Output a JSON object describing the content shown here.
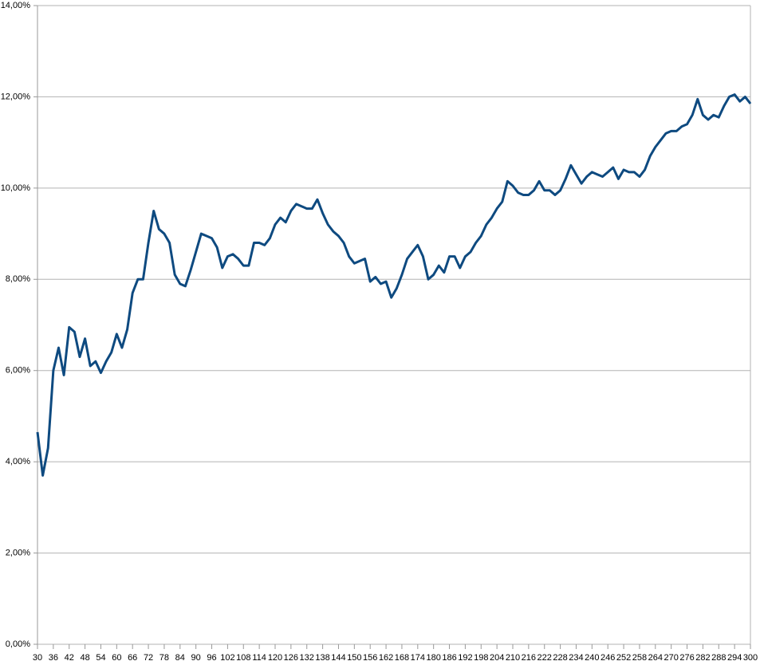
{
  "chart_data": {
    "type": "line",
    "x": [
      30,
      32,
      34,
      36,
      38,
      40,
      42,
      44,
      46,
      48,
      50,
      52,
      54,
      56,
      58,
      60,
      62,
      64,
      66,
      68,
      70,
      72,
      74,
      76,
      78,
      80,
      82,
      84,
      86,
      88,
      90,
      92,
      94,
      96,
      98,
      100,
      102,
      104,
      106,
      108,
      110,
      112,
      114,
      116,
      118,
      120,
      122,
      124,
      126,
      128,
      130,
      132,
      134,
      136,
      138,
      140,
      142,
      144,
      146,
      148,
      150,
      152,
      154,
      156,
      158,
      160,
      162,
      164,
      166,
      168,
      170,
      172,
      174,
      176,
      178,
      180,
      182,
      184,
      186,
      188,
      190,
      192,
      194,
      196,
      198,
      200,
      202,
      204,
      206,
      208,
      210,
      212,
      214,
      216,
      218,
      220,
      222,
      224,
      226,
      228,
      230,
      232,
      234,
      236,
      238,
      240,
      242,
      244,
      246,
      248,
      250,
      252,
      254,
      256,
      258,
      260,
      262,
      264,
      266,
      268,
      270,
      272,
      274,
      276,
      278,
      280,
      282,
      284,
      286,
      288,
      290,
      292,
      294,
      296,
      298,
      300
    ],
    "series": [
      {
        "color": "#0e4a80",
        "values": [
          4.65,
          3.7,
          4.3,
          6.0,
          6.5,
          5.9,
          6.95,
          6.85,
          6.3,
          6.7,
          6.1,
          6.2,
          5.95,
          6.2,
          6.4,
          6.8,
          6.5,
          6.9,
          7.7,
          8.0,
          8.0,
          8.8,
          9.5,
          9.1,
          9.0,
          8.8,
          8.1,
          7.9,
          7.85,
          8.2,
          8.6,
          9.0,
          8.95,
          8.9,
          8.7,
          8.25,
          8.5,
          8.55,
          8.45,
          8.3,
          8.3,
          8.8,
          8.8,
          8.75,
          8.9,
          9.2,
          9.35,
          9.25,
          9.5,
          9.65,
          9.6,
          9.55,
          9.55,
          9.75,
          9.45,
          9.2,
          9.05,
          8.95,
          8.8,
          8.5,
          8.35,
          8.4,
          8.45,
          7.95,
          8.05,
          7.9,
          7.95,
          7.6,
          7.8,
          8.1,
          8.45,
          8.6,
          8.75,
          8.5,
          8.0,
          8.1,
          8.3,
          8.15,
          8.5,
          8.5,
          8.25,
          8.5,
          8.6,
          8.8,
          8.95,
          9.2,
          9.35,
          9.55,
          9.7,
          10.15,
          10.05,
          9.9,
          9.85,
          9.85,
          9.95,
          10.15,
          9.95,
          9.95,
          9.85,
          9.95,
          10.2,
          10.5,
          10.3,
          10.1,
          10.25,
          10.35,
          10.3,
          10.25,
          10.35,
          10.45,
          10.2,
          10.4,
          10.35,
          10.35,
          10.25,
          10.4,
          10.7,
          10.9,
          11.05,
          11.2,
          11.25,
          11.25,
          11.35,
          11.4,
          11.6,
          11.95,
          11.6,
          11.5,
          11.6,
          11.55,
          11.8,
          12.0,
          12.05,
          11.9,
          12.0,
          11.85
        ]
      }
    ],
    "xlim": [
      30,
      300
    ],
    "xticks": [
      30,
      36,
      42,
      48,
      54,
      60,
      66,
      72,
      78,
      84,
      90,
      96,
      102,
      108,
      114,
      120,
      126,
      132,
      138,
      144,
      150,
      156,
      162,
      168,
      174,
      180,
      186,
      192,
      198,
      204,
      210,
      216,
      222,
      228,
      234,
      240,
      246,
      252,
      258,
      264,
      270,
      276,
      282,
      288,
      294,
      300
    ],
    "ylim": [
      0,
      14
    ],
    "yticks": [
      {
        "value": 0,
        "label": "0,00%"
      },
      {
        "value": 2,
        "label": "2,00%"
      },
      {
        "value": 4,
        "label": "4,00%"
      },
      {
        "value": 6,
        "label": "6,00%"
      },
      {
        "value": 8,
        "label": "8,00%"
      },
      {
        "value": 10,
        "label": "10,00%"
      },
      {
        "value": 12,
        "label": "12,00%"
      },
      {
        "value": 14,
        "label": "14,00%"
      }
    ],
    "grid": true
  }
}
